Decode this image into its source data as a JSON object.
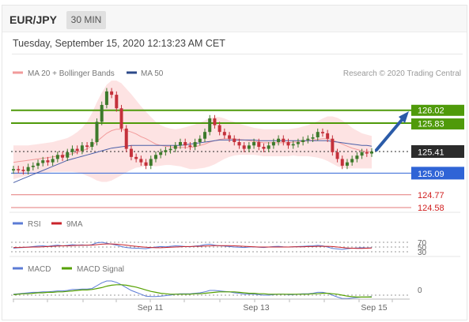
{
  "header": {
    "symbol": "EUR/JPY",
    "timeframe": "30 MIN",
    "datetime": "Tuesday, September 15, 2020 12:13:23 AM CET"
  },
  "legend": {
    "ma20": "MA 20 + Bollinger Bands",
    "ma50": "MA 50",
    "credit": "Research © 2020 Trading Central"
  },
  "levels": [
    {
      "value": "126.02",
      "color": "#4f9a0a"
    },
    {
      "value": "125.83",
      "color": "#4f9a0a"
    },
    {
      "value": "125.41",
      "color": "#2b2b2b"
    },
    {
      "value": "125.09",
      "color": "#2f64d6"
    },
    {
      "value": "124.77",
      "color": "#d12020"
    },
    {
      "value": "124.58",
      "color": "#d12020"
    }
  ],
  "rsi_legend": {
    "rsi": "RSI",
    "ma": "9MA"
  },
  "rsi_levels": [
    "70",
    "50",
    "30"
  ],
  "macd_legend": {
    "macd": "MACD",
    "signal": "MACD Signal"
  },
  "macd_levels": [
    "0"
  ],
  "x_axis": [
    "Sep 11",
    "Sep 13",
    "Sep 15"
  ],
  "colors": {
    "up": "#3d7a2b",
    "down": "#c4313b",
    "band": "#fcd9d9",
    "ma20": "#f29b9b",
    "ma50": "#4a5fa8",
    "rsi": "#5b7bd5",
    "rsi_ma": "#c9232b",
    "macd": "#5b7bd5",
    "macd_signal": "#55a100"
  },
  "chart_data": {
    "type": "candlestick",
    "price": [
      125.15,
      125.14,
      125.12,
      125.18,
      125.2,
      125.24,
      125.28,
      125.25,
      125.3,
      125.36,
      125.32,
      125.4,
      125.45,
      125.42,
      125.5,
      125.48,
      125.55,
      125.85,
      126.1,
      126.3,
      126.25,
      126.05,
      125.75,
      125.45,
      125.33,
      125.3,
      125.25,
      125.2,
      125.3,
      125.36,
      125.4,
      125.43,
      125.45,
      125.5,
      125.55,
      125.5,
      125.48,
      125.55,
      125.6,
      125.7,
      125.9,
      125.8,
      125.7,
      125.65,
      125.6,
      125.55,
      125.5,
      125.45,
      125.5,
      125.55,
      125.48,
      125.45,
      125.5,
      125.55,
      125.6,
      125.55,
      125.5,
      125.52,
      125.55,
      125.58,
      125.6,
      125.62,
      125.7,
      125.68,
      125.6,
      125.4,
      125.3,
      125.2,
      125.25,
      125.3,
      125.35,
      125.4,
      125.38,
      125.41
    ],
    "ma20": [
      125.25,
      125.26,
      125.27,
      125.28,
      125.29,
      125.3,
      125.31,
      125.32,
      125.33,
      125.34,
      125.35,
      125.36,
      125.38,
      125.4,
      125.42,
      125.45,
      125.5,
      125.56,
      125.62,
      125.68,
      125.72,
      125.74,
      125.74,
      125.72,
      125.7,
      125.67,
      125.63,
      125.6,
      125.56,
      125.52,
      125.5,
      125.49,
      125.48,
      125.47,
      125.47,
      125.47,
      125.47,
      125.48,
      125.5,
      125.52,
      125.55,
      125.57,
      125.59,
      125.6,
      125.6,
      125.6,
      125.59,
      125.58,
      125.57,
      125.56,
      125.55,
      125.54,
      125.54,
      125.54,
      125.54,
      125.54,
      125.54,
      125.55,
      125.55,
      125.56,
      125.57,
      125.58,
      125.59,
      125.6,
      125.6,
      125.58,
      125.55,
      125.52,
      125.49,
      125.46,
      125.44,
      125.42,
      125.41,
      125.4
    ],
    "ma50": [
      124.95,
      124.98,
      125.01,
      125.04,
      125.07,
      125.1,
      125.13,
      125.16,
      125.19,
      125.22,
      125.25,
      125.28,
      125.3,
      125.32,
      125.34,
      125.36,
      125.38,
      125.4,
      125.42,
      125.44,
      125.46,
      125.47,
      125.48,
      125.49,
      125.5,
      125.5,
      125.5,
      125.5,
      125.5,
      125.5,
      125.5,
      125.5,
      125.5,
      125.5,
      125.5,
      125.51,
      125.52,
      125.53,
      125.54,
      125.55,
      125.56,
      125.57,
      125.58,
      125.58,
      125.58,
      125.58,
      125.58,
      125.58,
      125.58,
      125.58,
      125.57,
      125.57,
      125.57,
      125.57,
      125.57,
      125.57,
      125.57,
      125.57,
      125.57,
      125.57,
      125.57,
      125.57,
      125.57,
      125.57,
      125.57,
      125.56,
      125.55,
      125.54,
      125.53,
      125.52,
      125.51,
      125.5,
      125.5,
      125.49
    ],
    "bb_width": [
      0.25,
      0.24,
      0.23,
      0.22,
      0.22,
      0.22,
      0.22,
      0.22,
      0.22,
      0.23,
      0.24,
      0.25,
      0.27,
      0.3,
      0.34,
      0.4,
      0.48,
      0.58,
      0.66,
      0.72,
      0.74,
      0.72,
      0.68,
      0.62,
      0.56,
      0.5,
      0.45,
      0.4,
      0.36,
      0.33,
      0.3,
      0.28,
      0.27,
      0.27,
      0.28,
      0.3,
      0.32,
      0.33,
      0.34,
      0.35,
      0.36,
      0.35,
      0.33,
      0.3,
      0.27,
      0.25,
      0.23,
      0.22,
      0.21,
      0.2,
      0.2,
      0.2,
      0.2,
      0.2,
      0.2,
      0.2,
      0.2,
      0.2,
      0.21,
      0.22,
      0.23,
      0.25,
      0.27,
      0.3,
      0.33,
      0.35,
      0.36,
      0.35,
      0.33,
      0.3,
      0.28,
      0.26,
      0.25,
      0.24
    ],
    "rsi": [
      45,
      47,
      48,
      50,
      52,
      54,
      55,
      53,
      56,
      58,
      55,
      57,
      60,
      58,
      59,
      57,
      60,
      68,
      70,
      66,
      62,
      58,
      52,
      48,
      46,
      45,
      44,
      43,
      47,
      50,
      52,
      51,
      53,
      55,
      54,
      52,
      51,
      54,
      56,
      60,
      62,
      58,
      55,
      54,
      52,
      50,
      49,
      48,
      50,
      51,
      49,
      48,
      50,
      52,
      53,
      51,
      50,
      51,
      52,
      53,
      54,
      55,
      57,
      55,
      50,
      44,
      42,
      40,
      43,
      45,
      46,
      47,
      46,
      47
    ],
    "rsi_ma": [
      48,
      48,
      49,
      49,
      50,
      50,
      51,
      52,
      53,
      54,
      55,
      55,
      56,
      57,
      57,
      58,
      58,
      60,
      62,
      63,
      63,
      62,
      60,
      58,
      55,
      53,
      51,
      49,
      48,
      47,
      47,
      48,
      49,
      50,
      51,
      52,
      52,
      53,
      53,
      54,
      55,
      56,
      56,
      56,
      56,
      55,
      54,
      53,
      52,
      51,
      50,
      50,
      50,
      50,
      50,
      50,
      50,
      51,
      51,
      51,
      52,
      52,
      53,
      53,
      53,
      52,
      50,
      48,
      46,
      45,
      44,
      44,
      45,
      46
    ],
    "macd": [
      0.02,
      0.03,
      0.04,
      0.05,
      0.06,
      0.06,
      0.07,
      0.07,
      0.08,
      0.09,
      0.09,
      0.1,
      0.12,
      0.12,
      0.13,
      0.13,
      0.14,
      0.2,
      0.26,
      0.3,
      0.3,
      0.27,
      0.22,
      0.16,
      0.1,
      0.06,
      0.02,
      -0.02,
      -0.03,
      -0.03,
      -0.02,
      -0.01,
      0.0,
      0.02,
      0.03,
      0.03,
      0.03,
      0.04,
      0.05,
      0.07,
      0.1,
      0.1,
      0.09,
      0.08,
      0.07,
      0.05,
      0.04,
      0.02,
      0.02,
      0.02,
      0.01,
      0.0,
      0.0,
      0.01,
      0.02,
      0.02,
      0.01,
      0.01,
      0.02,
      0.03,
      0.03,
      0.04,
      0.06,
      0.06,
      0.04,
      0.0,
      -0.04,
      -0.07,
      -0.07,
      -0.06,
      -0.05,
      -0.04,
      -0.04,
      -0.03
    ],
    "macd_signal": [
      0.01,
      0.02,
      0.03,
      0.03,
      0.04,
      0.05,
      0.05,
      0.06,
      0.06,
      0.07,
      0.07,
      0.08,
      0.09,
      0.1,
      0.11,
      0.11,
      0.12,
      0.14,
      0.16,
      0.19,
      0.21,
      0.22,
      0.22,
      0.21,
      0.19,
      0.17,
      0.14,
      0.11,
      0.08,
      0.06,
      0.04,
      0.03,
      0.02,
      0.02,
      0.02,
      0.02,
      0.02,
      0.03,
      0.03,
      0.04,
      0.05,
      0.06,
      0.07,
      0.07,
      0.07,
      0.07,
      0.06,
      0.05,
      0.04,
      0.04,
      0.03,
      0.03,
      0.02,
      0.02,
      0.02,
      0.02,
      0.02,
      0.02,
      0.02,
      0.02,
      0.02,
      0.03,
      0.03,
      0.04,
      0.04,
      0.03,
      0.02,
      0.0,
      -0.02,
      -0.03,
      -0.04,
      -0.04,
      -0.04,
      -0.04
    ]
  }
}
